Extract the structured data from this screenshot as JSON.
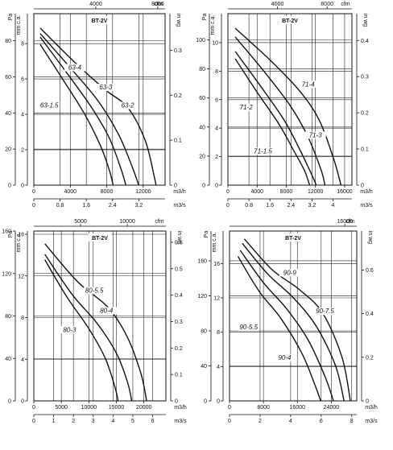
{
  "chart_data": [
    {
      "type": "line",
      "title": "BT-2V",
      "y_left": {
        "label": "Pa",
        "range": [
          0,
          95
        ],
        "ticks": [
          0,
          20,
          40,
          60,
          80
        ]
      },
      "y_mm": {
        "label": "mm c.a.",
        "range": [
          0,
          9.69
        ],
        "ticks": [
          0,
          2,
          4,
          6,
          8
        ]
      },
      "y_inwg": {
        "label": "in wg",
        "range": [
          0,
          0.3814
        ],
        "ticks": [
          0,
          0.1,
          0.2,
          0.3
        ]
      },
      "x_m3h": {
        "label": "m3/h",
        "range": [
          0,
          14400
        ],
        "ticks": [
          0,
          4000,
          8000,
          12000
        ]
      },
      "x_m3s": {
        "label": "m3/s",
        "range": [
          0,
          4.0
        ],
        "ticks": [
          0,
          0.8,
          1.6,
          2.4,
          3.2
        ]
      },
      "x_cfm": {
        "label": "cfm",
        "range": [
          0,
          8475
        ],
        "ticks": [
          4000,
          8000
        ]
      },
      "series": [
        {
          "name": "63-1.5",
          "points": [
            [
              700,
              78
            ],
            [
              3000,
              60
            ],
            [
              5500,
              40
            ],
            [
              7300,
              22
            ],
            [
              8300,
              8
            ],
            [
              8700,
              0
            ]
          ]
        },
        {
          "name": "63-2",
          "points": [
            [
              700,
              82
            ],
            [
              3500,
              63
            ],
            [
              6200,
              44
            ],
            [
              8200,
              27
            ],
            [
              9500,
              10
            ],
            [
              10100,
              0
            ]
          ]
        },
        {
          "name": "63-3",
          "points": [
            [
              700,
              84
            ],
            [
              4000,
              65
            ],
            [
              7000,
              47
            ],
            [
              9300,
              28
            ],
            [
              10800,
              10
            ],
            [
              11500,
              0
            ]
          ]
        },
        {
          "name": "63-4",
          "points": [
            [
              700,
              87
            ],
            [
              4500,
              68
            ],
            [
              7800,
              53
            ],
            [
              10300,
              43
            ],
            [
              12200,
              25
            ],
            [
              13200,
              5
            ],
            [
              13400,
              0
            ]
          ]
        }
      ],
      "curve_labels": [
        {
          "text": "63-4",
          "x": 4500,
          "y": 64
        },
        {
          "text": "63-3",
          "x": 7900,
          "y": 53
        },
        {
          "text": "63-2",
          "x": 10300,
          "y": 43
        },
        {
          "text": "63-1.5",
          "x": 1700,
          "y": 43
        }
      ]
    },
    {
      "type": "line",
      "title": "BT-2V",
      "y_left": {
        "label": "Pa",
        "range": [
          0,
          118
        ],
        "ticks": [
          0,
          20,
          40,
          60,
          80,
          100
        ]
      },
      "y_mm": {
        "label": "mm c.a.",
        "range": [
          0,
          12.03
        ],
        "ticks": [
          0,
          2,
          4,
          6,
          8,
          10
        ]
      },
      "y_inwg": {
        "label": "in wg",
        "range": [
          0,
          0.474
        ],
        "ticks": [
          0,
          0.1,
          0.2,
          0.3,
          0.4
        ]
      },
      "x_m3h": {
        "label": "m3/h",
        "range": [
          0,
          17000
        ],
        "ticks": [
          0,
          4000,
          8000,
          12000,
          16000
        ]
      },
      "x_m3s": {
        "label": "m3/s",
        "range": [
          0,
          4.72
        ],
        "ticks": [
          0,
          0.8,
          1.6,
          2.4,
          3.2,
          4
        ]
      },
      "x_cfm": {
        "label": "cfm",
        "range": [
          0,
          10000
        ],
        "ticks": [
          4000,
          8000
        ]
      },
      "series": [
        {
          "name": "71-1.5",
          "points": [
            [
              1000,
              87
            ],
            [
              4000,
              64
            ],
            [
              7000,
              42
            ],
            [
              9000,
              24
            ],
            [
              10500,
              10
            ],
            [
              11200,
              0
            ]
          ]
        },
        {
          "name": "71-2",
          "points": [
            [
              1000,
              92
            ],
            [
              4500,
              68
            ],
            [
              7800,
              44
            ],
            [
              10000,
              23
            ],
            [
              11600,
              6
            ],
            [
              12100,
              0
            ]
          ]
        },
        {
          "name": "71-3",
          "points": [
            [
              1000,
              102
            ],
            [
              5000,
              78
            ],
            [
              8500,
              55
            ],
            [
              11000,
              33
            ],
            [
              12800,
              10
            ],
            [
              13300,
              0
            ]
          ]
        },
        {
          "name": "71-4",
          "points": [
            [
              1000,
              108
            ],
            [
              6000,
              85
            ],
            [
              9800,
              65
            ],
            [
              12500,
              45
            ],
            [
              14500,
              18
            ],
            [
              15500,
              0
            ]
          ]
        }
      ],
      "curve_labels": [
        {
          "text": "71-4",
          "x": 11000,
          "y": 68
        },
        {
          "text": "71-2",
          "x": 2500,
          "y": 52
        },
        {
          "text": "71-3",
          "x": 12000,
          "y": 33
        },
        {
          "text": "71-1.5",
          "x": 4800,
          "y": 22
        }
      ]
    },
    {
      "type": "line",
      "title": "BT-2V",
      "y_left": {
        "label": "Pa",
        "range": [
          0,
          160
        ],
        "ticks": [
          0,
          40,
          80,
          120,
          160
        ]
      },
      "y_mm": {
        "label": "mm c.a.",
        "range": [
          0,
          16.31
        ],
        "ticks": [
          0,
          4,
          8,
          12,
          16
        ]
      },
      "y_inwg": {
        "label": "in wg",
        "range": [
          0,
          0.6424
        ],
        "ticks": [
          0,
          0.1,
          0.2,
          0.3,
          0.4,
          0.5,
          0.6
        ]
      },
      "x_m3h": {
        "label": "m3/h",
        "range": [
          0,
          24000
        ],
        "ticks": [
          0,
          5000,
          10000,
          15000,
          20000
        ]
      },
      "x_m3s": {
        "label": "m3/s",
        "range": [
          0,
          6.67
        ],
        "ticks": [
          0,
          1,
          2,
          3,
          4,
          5,
          6
        ]
      },
      "x_cfm": {
        "label": "cfm",
        "range": [
          0,
          14126
        ],
        "ticks": [
          5000,
          10000
        ]
      },
      "series": [
        {
          "name": "80-3",
          "points": [
            [
              2000,
              133
            ],
            [
              6000,
              98
            ],
            [
              10000,
              68
            ],
            [
              13000,
              40
            ],
            [
              14800,
              12
            ],
            [
              15300,
              0
            ]
          ]
        },
        {
          "name": "80-4",
          "points": [
            [
              2000,
              138
            ],
            [
              7000,
              100
            ],
            [
              11500,
              73
            ],
            [
              15000,
              45
            ],
            [
              17000,
              18
            ],
            [
              17800,
              0
            ]
          ]
        },
        {
          "name": "80-5.5",
          "points": [
            [
              2000,
              148
            ],
            [
              8000,
              112
            ],
            [
              13500,
              88
            ],
            [
              17000,
              60
            ],
            [
              19500,
              25
            ],
            [
              20500,
              0
            ]
          ]
        }
      ],
      "curve_labels": [
        {
          "text": "80-5.5",
          "x": 11000,
          "y": 102
        },
        {
          "text": "80-4",
          "x": 13200,
          "y": 83
        },
        {
          "text": "80-3",
          "x": 6500,
          "y": 65
        }
      ]
    },
    {
      "type": "line",
      "title": "BT-2V",
      "y_left": {
        "label": "Pa",
        "range": [
          0,
          194
        ],
        "ticks": [
          0,
          40,
          80,
          120,
          160
        ]
      },
      "y_mm": {
        "label": "mm c.a.",
        "range": [
          0,
          19.78
        ],
        "ticks": [
          0,
          4,
          8,
          12,
          16
        ]
      },
      "y_inwg": {
        "label": "in wg",
        "range": [
          0,
          0.779
        ],
        "ticks": [
          0,
          0.2,
          0.4,
          0.6
        ]
      },
      "x_m3h": {
        "label": "m3/h",
        "range": [
          0,
          30000
        ],
        "ticks": [
          0,
          8000,
          16000,
          24000
        ]
      },
      "x_m3s": {
        "label": "m3/s",
        "range": [
          0,
          8.33
        ],
        "ticks": [
          0,
          2,
          4,
          6,
          8
        ]
      },
      "x_cfm": {
        "label": "cfm",
        "range": [
          0,
          17657
        ],
        "ticks": [
          16000
        ]
      },
      "series": [
        {
          "name": "90-4",
          "points": [
            [
              2000,
              165
            ],
            [
              7000,
              125
            ],
            [
              12000,
              95
            ],
            [
              17000,
              55
            ],
            [
              20000,
              20
            ],
            [
              21500,
              0
            ]
          ]
        },
        {
          "name": "90-5.5",
          "points": [
            [
              2500,
              172
            ],
            [
              8000,
              135
            ],
            [
              13500,
              105
            ],
            [
              18500,
              70
            ],
            [
              22500,
              28
            ],
            [
              24500,
              0
            ]
          ]
        },
        {
          "name": "90-7.5",
          "points": [
            [
              3000,
              180
            ],
            [
              9000,
              145
            ],
            [
              15000,
              118
            ],
            [
              20500,
              85
            ],
            [
              25000,
              40
            ],
            [
              27000,
              0
            ]
          ]
        },
        {
          "name": "90-9",
          "points": [
            [
              3500,
              185
            ],
            [
              10000,
              150
            ],
            [
              16500,
              127
            ],
            [
              22000,
              100
            ],
            [
              26500,
              50
            ],
            [
              28500,
              0
            ]
          ]
        }
      ],
      "curve_labels": [
        {
          "text": "90-9",
          "x": 14200,
          "y": 144
        },
        {
          "text": "90-7.5",
          "x": 22500,
          "y": 100
        },
        {
          "text": "90-5.5",
          "x": 4500,
          "y": 82
        },
        {
          "text": "90-4",
          "x": 13000,
          "y": 47
        }
      ]
    }
  ]
}
